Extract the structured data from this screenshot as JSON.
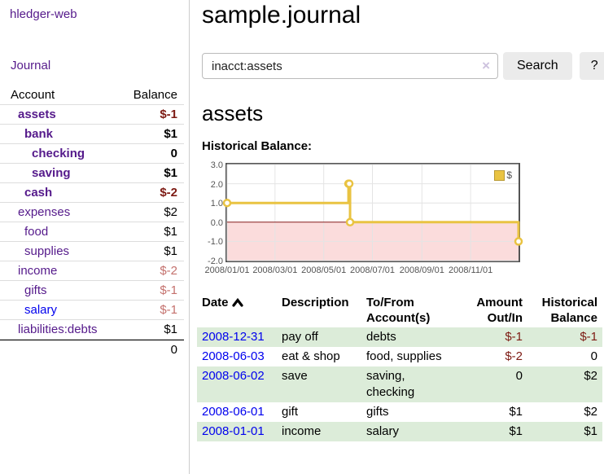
{
  "app": {
    "title": "hledger-web"
  },
  "sidebar": {
    "journal_link": "Journal",
    "table": {
      "account_header": "Account",
      "balance_header": "Balance",
      "rows": [
        {
          "name": "assets",
          "balance": "$-1"
        },
        {
          "name": "bank",
          "balance": "$1"
        },
        {
          "name": "checking",
          "balance": "0"
        },
        {
          "name": "saving",
          "balance": "$1"
        },
        {
          "name": "cash",
          "balance": "$-2"
        },
        {
          "name": "expenses",
          "balance": "$2"
        },
        {
          "name": "food",
          "balance": "$1"
        },
        {
          "name": "supplies",
          "balance": "$1"
        },
        {
          "name": "income",
          "balance": "$-2"
        },
        {
          "name": "gifts",
          "balance": "$-1"
        },
        {
          "name": "salary",
          "balance": "$-1"
        },
        {
          "name": "liabilities:debts",
          "balance": "$1"
        }
      ],
      "total": "0"
    }
  },
  "main": {
    "title": "sample.journal",
    "search": {
      "value": "inacct:assets",
      "clear_icon": "×",
      "search_button": "Search",
      "help_button": "?"
    },
    "account_heading": "assets",
    "chart_heading": "Historical Balance:"
  },
  "chart_data": {
    "type": "line",
    "step": true,
    "title": "Historical Balance:",
    "x_range": [
      "2008-01-01",
      "2008-12-31"
    ],
    "ylim": [
      -2,
      3
    ],
    "y_ticks": [
      "3.0",
      "2.0",
      "1.0",
      "0.0",
      "-1.0",
      "-2.0"
    ],
    "x_ticks": [
      "2008/01/01",
      "2008/03/01",
      "2008/05/01",
      "2008/07/01",
      "2008/09/01",
      "2008/11/01"
    ],
    "series": [
      {
        "name": "$",
        "color": "#e9c342",
        "points": [
          [
            "2008-01-01",
            1
          ],
          [
            "2008-06-01",
            2
          ],
          [
            "2008-06-02",
            2
          ],
          [
            "2008-06-03",
            0
          ],
          [
            "2008-12-31",
            -1
          ]
        ]
      }
    ],
    "legend": {
      "label": "$",
      "position": "top-right"
    },
    "grid": true,
    "negative_region_color": "#fbdcdc",
    "zero_line_color": "#8b1d1d"
  },
  "transactions": {
    "headers": {
      "date": "Date",
      "description": "Description",
      "accounts": "To/From Account(s)",
      "amount": "Amount Out/In",
      "balance": "Historical Balance"
    },
    "rows": [
      {
        "date": "2008-12-31",
        "description": "pay off",
        "accounts": "debts",
        "amount": "$-1",
        "balance": "$-1"
      },
      {
        "date": "2008-06-03",
        "description": "eat & shop",
        "accounts": "food, supplies",
        "amount": "$-2",
        "balance": "0"
      },
      {
        "date": "2008-06-02",
        "description": "save",
        "accounts": "saving, checking",
        "amount": "0",
        "balance": "$2"
      },
      {
        "date": "2008-06-01",
        "description": "gift",
        "accounts": "gifts",
        "amount": "$1",
        "balance": "$2"
      },
      {
        "date": "2008-01-01",
        "description": "income",
        "accounts": "salary",
        "amount": "$1",
        "balance": "$1"
      }
    ]
  },
  "colors": {
    "purple_link": "#551a8b",
    "blue_link": "#0000ee",
    "negative_strong": "#7d1a13",
    "negative_faded": "#c4716d",
    "row_stripe_green": "#dcecd9",
    "series_yellow": "#e9c342",
    "negative_region_pink": "#fbdcdc",
    "zero_line_red": "#8b1d1d",
    "chart_border_gray": "#545454"
  }
}
